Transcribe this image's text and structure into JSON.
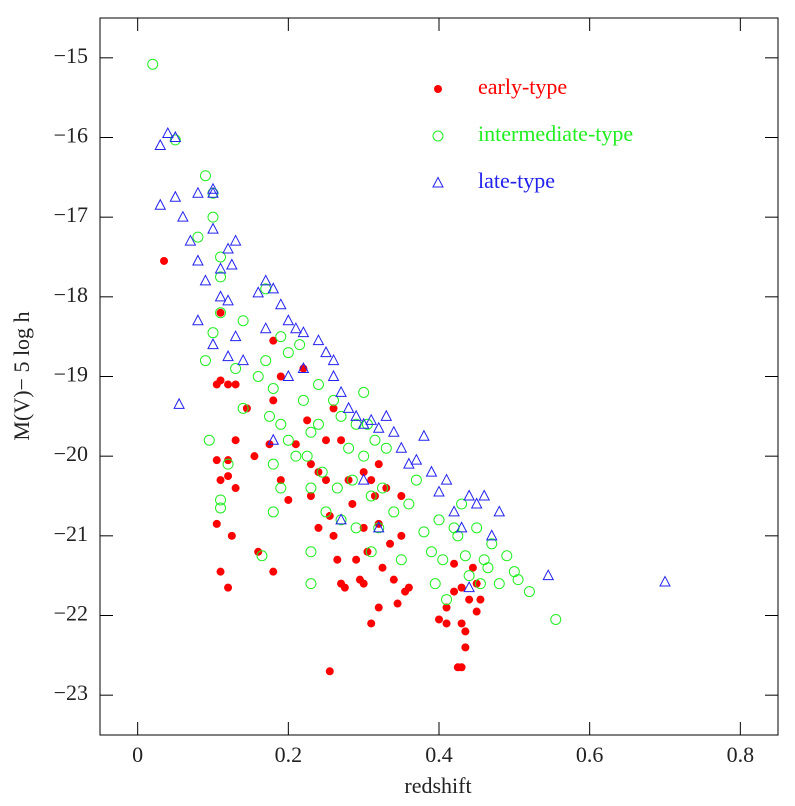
{
  "chart_data": {
    "type": "scatter",
    "x_label": "redshift",
    "y_label": "M(V)− 5 log h",
    "xlim": [
      -0.05,
      0.85
    ],
    "ylim": [
      -23.5,
      -14.5
    ],
    "xticks": [
      0,
      0.2,
      0.4,
      0.6,
      0.8
    ],
    "yticks": [
      {
        "value": -15,
        "label": "−15"
      },
      {
        "value": -16,
        "label": "−16"
      },
      {
        "value": -17,
        "label": "−17"
      },
      {
        "value": -18,
        "label": "−18"
      },
      {
        "value": -19,
        "label": "−19"
      },
      {
        "value": -20,
        "label": "−20"
      },
      {
        "value": -21,
        "label": "−21"
      },
      {
        "value": -22,
        "label": "−22"
      },
      {
        "value": -23,
        "label": "−23"
      }
    ],
    "legend": "upper right",
    "series": [
      {
        "name": "early-type",
        "color": "#ff0000",
        "marker": "filled-circle",
        "x": [
          0.035,
          0.11,
          0.105,
          0.11,
          0.12,
          0.13,
          0.145,
          0.13,
          0.105,
          0.12,
          0.11,
          0.12,
          0.13,
          0.105,
          0.125,
          0.11,
          0.12,
          0.155,
          0.16,
          0.18,
          0.175,
          0.18,
          0.18,
          0.19,
          0.19,
          0.2,
          0.21,
          0.22,
          0.225,
          0.23,
          0.23,
          0.24,
          0.24,
          0.25,
          0.25,
          0.255,
          0.26,
          0.26,
          0.265,
          0.27,
          0.275,
          0.255,
          0.27,
          0.28,
          0.285,
          0.29,
          0.295,
          0.3,
          0.3,
          0.305,
          0.31,
          0.31,
          0.315,
          0.32,
          0.32,
          0.325,
          0.33,
          0.335,
          0.34,
          0.345,
          0.35,
          0.35,
          0.355,
          0.36,
          0.4,
          0.41,
          0.41,
          0.42,
          0.42,
          0.425,
          0.43,
          0.43,
          0.43,
          0.435,
          0.435,
          0.44,
          0.445,
          0.45,
          0.45,
          0.455,
          0.32,
          0.3
        ],
        "values": [
          -17.55,
          -18.2,
          -19.1,
          -19.05,
          -19.1,
          -19.1,
          -19.4,
          -19.8,
          -20.05,
          -20.05,
          -20.3,
          -20.25,
          -20.4,
          -20.85,
          -21.0,
          -21.45,
          -21.65,
          -20.0,
          -21.2,
          -21.45,
          -19.85,
          -19.3,
          -18.55,
          -19.0,
          -20.3,
          -20.55,
          -19.85,
          -18.9,
          -19.55,
          -20.1,
          -20.5,
          -20.2,
          -20.9,
          -19.8,
          -20.3,
          -20.75,
          -19.4,
          -21.0,
          -21.3,
          -21.6,
          -21.65,
          -22.7,
          -19.8,
          -20.3,
          -20.6,
          -21.3,
          -21.55,
          -20.2,
          -20.9,
          -21.2,
          -20.3,
          -22.1,
          -20.5,
          -20.1,
          -20.85,
          -21.4,
          -20.4,
          -21.1,
          -21.55,
          -21.85,
          -20.5,
          -21.0,
          -21.7,
          -21.65,
          -22.05,
          -21.9,
          -22.1,
          -21.35,
          -21.7,
          -22.65,
          -22.65,
          -22.1,
          -21.65,
          -22.2,
          -22.4,
          -21.8,
          -21.4,
          -21.95,
          -21.6,
          -21.8,
          -21.9,
          -21.6
        ]
      },
      {
        "name": "intermediate-type",
        "color": "#22ee22",
        "marker": "open-circle",
        "x": [
          0.02,
          0.05,
          0.09,
          0.08,
          0.1,
          0.1,
          0.11,
          0.11,
          0.11,
          0.1,
          0.09,
          0.095,
          0.11,
          0.11,
          0.12,
          0.13,
          0.14,
          0.14,
          0.16,
          0.17,
          0.165,
          0.17,
          0.175,
          0.18,
          0.18,
          0.18,
          0.19,
          0.19,
          0.19,
          0.2,
          0.2,
          0.21,
          0.215,
          0.22,
          0.225,
          0.23,
          0.23,
          0.23,
          0.23,
          0.24,
          0.245,
          0.25,
          0.26,
          0.265,
          0.27,
          0.27,
          0.28,
          0.285,
          0.29,
          0.29,
          0.3,
          0.305,
          0.31,
          0.31,
          0.315,
          0.32,
          0.325,
          0.33,
          0.34,
          0.35,
          0.36,
          0.37,
          0.38,
          0.39,
          0.395,
          0.4,
          0.405,
          0.41,
          0.42,
          0.425,
          0.43,
          0.435,
          0.44,
          0.45,
          0.455,
          0.46,
          0.465,
          0.47,
          0.48,
          0.49,
          0.5,
          0.505,
          0.52,
          0.555,
          0.3,
          0.24
        ],
        "values": [
          -15.08,
          -16.03,
          -16.48,
          -17.25,
          -16.7,
          -17.0,
          -17.5,
          -17.75,
          -18.2,
          -18.45,
          -18.8,
          -19.8,
          -20.55,
          -20.65,
          -20.1,
          -18.9,
          -18.3,
          -19.4,
          -19.0,
          -17.9,
          -21.25,
          -18.8,
          -19.5,
          -19.15,
          -20.1,
          -20.7,
          -18.5,
          -19.6,
          -20.4,
          -18.7,
          -19.8,
          -20.0,
          -18.6,
          -19.3,
          -20.0,
          -19.7,
          -20.4,
          -21.2,
          -21.6,
          -19.1,
          -20.2,
          -20.7,
          -19.3,
          -20.4,
          -19.5,
          -20.8,
          -19.9,
          -20.3,
          -19.6,
          -20.9,
          -20.0,
          -19.6,
          -20.5,
          -21.2,
          -19.8,
          -20.9,
          -20.4,
          -19.9,
          -20.7,
          -21.3,
          -20.6,
          -20.3,
          -20.95,
          -21.2,
          -21.6,
          -20.8,
          -21.3,
          -21.8,
          -20.9,
          -21.0,
          -20.6,
          -21.25,
          -21.5,
          -20.9,
          -21.6,
          -21.3,
          -21.4,
          -21.1,
          -21.6,
          -21.25,
          -21.45,
          -21.55,
          -21.7,
          -22.05,
          -19.2,
          -19.6
        ]
      },
      {
        "name": "late-type",
        "color": "#2222ee",
        "marker": "open-triangle",
        "x": [
          0.03,
          0.04,
          0.05,
          0.03,
          0.05,
          0.06,
          0.08,
          0.07,
          0.055,
          0.08,
          0.09,
          0.08,
          0.1,
          0.1,
          0.1,
          0.11,
          0.12,
          0.125,
          0.13,
          0.11,
          0.12,
          0.13,
          0.12,
          0.14,
          0.1,
          0.16,
          0.17,
          0.18,
          0.19,
          0.17,
          0.2,
          0.21,
          0.2,
          0.22,
          0.22,
          0.24,
          0.25,
          0.26,
          0.26,
          0.27,
          0.28,
          0.29,
          0.3,
          0.31,
          0.32,
          0.33,
          0.34,
          0.35,
          0.36,
          0.37,
          0.38,
          0.39,
          0.4,
          0.41,
          0.42,
          0.43,
          0.44,
          0.45,
          0.46,
          0.47,
          0.48,
          0.545,
          0.7,
          0.44,
          0.3,
          0.18,
          0.27,
          0.32
        ],
        "values": [
          -16.1,
          -15.95,
          -16.0,
          -16.85,
          -16.75,
          -17.0,
          -16.7,
          -17.3,
          -19.35,
          -17.55,
          -17.8,
          -18.3,
          -16.65,
          -16.7,
          -17.15,
          -17.65,
          -17.4,
          -17.6,
          -17.3,
          -18.0,
          -18.05,
          -18.5,
          -18.75,
          -18.8,
          -18.6,
          -17.95,
          -17.8,
          -17.9,
          -18.1,
          -18.4,
          -18.3,
          -18.4,
          -19.0,
          -18.45,
          -18.9,
          -18.55,
          -18.7,
          -19.0,
          -18.8,
          -19.2,
          -19.4,
          -19.5,
          -19.6,
          -19.55,
          -19.65,
          -19.5,
          -19.7,
          -19.9,
          -20.1,
          -20.05,
          -19.75,
          -20.2,
          -20.45,
          -20.3,
          -20.7,
          -20.9,
          -20.5,
          -20.6,
          -20.5,
          -21.0,
          -20.7,
          -21.5,
          -21.58,
          -21.65,
          -20.3,
          -19.8,
          -20.8,
          -20.9
        ]
      }
    ]
  }
}
